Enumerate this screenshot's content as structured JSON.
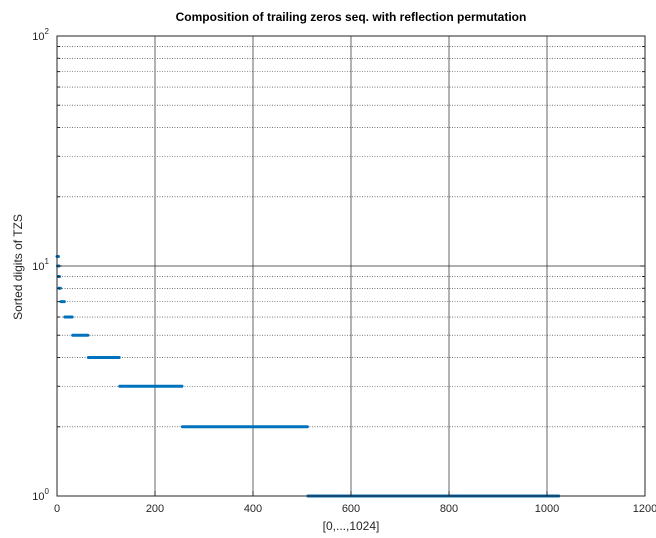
{
  "chart_data": {
    "type": "scatter",
    "title": "Composition of trailing zeros seq. with reflection permutation",
    "xlabel": "[0,...,1024]",
    "ylabel": "Sorted digits of TZS",
    "xlim": [
      0,
      1200
    ],
    "ylim": [
      1,
      100
    ],
    "yscale": "log",
    "grid": true,
    "x_ticks": [
      0,
      200,
      400,
      600,
      800,
      1000,
      1200
    ],
    "y_ticks": [
      {
        "base": "10",
        "exp": "0",
        "value": 1
      },
      {
        "base": "10",
        "exp": "1",
        "value": 10
      },
      {
        "base": "10",
        "exp": "2",
        "value": 100
      }
    ],
    "color": "#0072BD",
    "series": [
      {
        "segments": [
          {
            "x_start": 512,
            "x_end": 1024,
            "y": 1
          },
          {
            "x_start": 256,
            "x_end": 511,
            "y": 2
          },
          {
            "x_start": 128,
            "x_end": 255,
            "y": 3
          },
          {
            "x_start": 64,
            "x_end": 127,
            "y": 4
          },
          {
            "x_start": 32,
            "x_end": 63,
            "y": 5
          },
          {
            "x_start": 16,
            "x_end": 31,
            "y": 6
          },
          {
            "x_start": 8,
            "x_end": 15,
            "y": 7
          },
          {
            "x_start": 4,
            "x_end": 7,
            "y": 8
          },
          {
            "x_start": 2,
            "x_end": 3,
            "y": 9
          },
          {
            "x_start": 1,
            "x_end": 1,
            "y": 10
          },
          {
            "x_start": 0,
            "x_end": 0,
            "y": 11
          }
        ]
      }
    ]
  }
}
